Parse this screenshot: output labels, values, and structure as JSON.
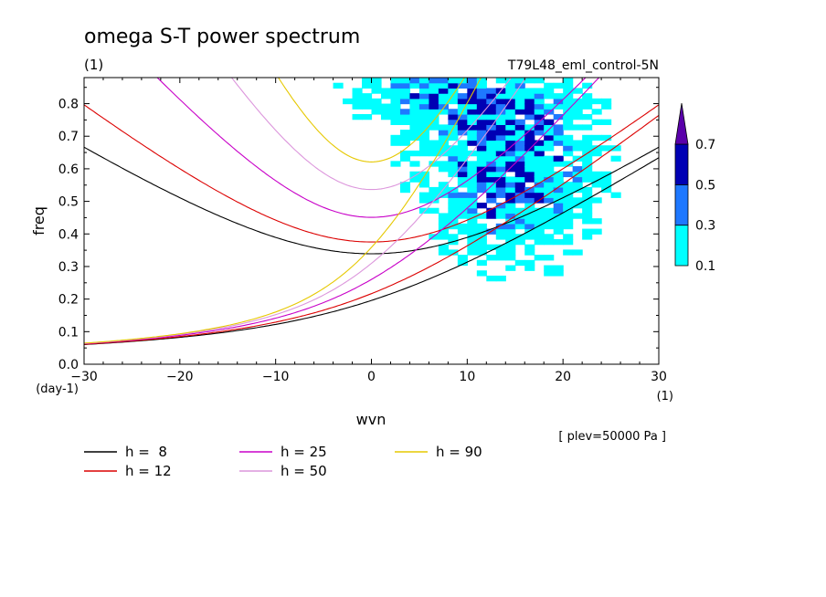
{
  "chart_data": {
    "type": "line",
    "title": "omega S-T power spectrum",
    "subtitle": "(1)",
    "run_label": "T79L48_eml_control-5N",
    "xlabel": "wvn",
    "xunit": "(1)",
    "ylabel": "freq",
    "yunit": "(day-1)",
    "footnote": "[ plev=50000 Pa ]",
    "xlim": [
      -30,
      30
    ],
    "ylim": [
      0,
      0.88
    ],
    "xticks": [
      -30,
      -20,
      -10,
      0,
      10,
      20,
      30
    ],
    "xtick_labels": [
      "−30",
      "−20",
      "−10",
      "0",
      "10",
      "20",
      "30"
    ],
    "yticks": [
      0,
      0.1,
      0.2,
      0.3,
      0.4,
      0.5,
      0.6,
      0.7,
      0.8
    ],
    "ytick_labels": [
      "0.0",
      "0.1",
      "0.2",
      "0.3",
      "0.4",
      "0.5",
      "0.6",
      "0.7",
      "0.8"
    ],
    "grid": false,
    "legend_position": "bottom-left",
    "colorbar": {
      "levels": [
        0.1,
        0.3,
        0.5,
        0.7
      ],
      "labels": [
        "0.1",
        "0.3",
        "0.5",
        "0.7"
      ],
      "colors": [
        "#00ffff",
        "#1e78ff",
        "#0000b4",
        "#5a00aa"
      ],
      "extend": "max"
    },
    "series": [
      {
        "name": "h =  8",
        "h": 8,
        "color": "#000000"
      },
      {
        "name": "h = 12",
        "h": 12,
        "color": "#dc0000"
      },
      {
        "name": "h = 25",
        "h": 25,
        "color": "#c800c8"
      },
      {
        "name": "h = 50",
        "h": 50,
        "color": "#dc96dc"
      },
      {
        "name": "h = 90",
        "h": 90,
        "color": "#e6c800"
      }
    ]
  }
}
